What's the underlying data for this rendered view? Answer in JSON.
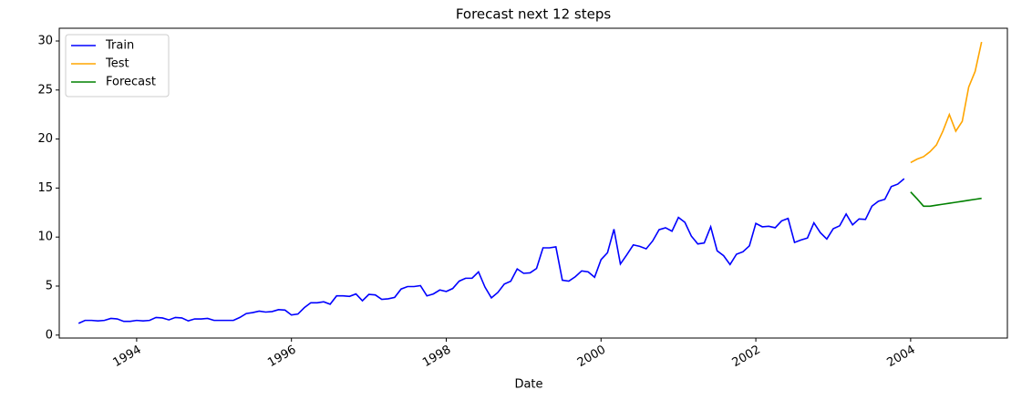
{
  "chart_data": {
    "type": "line",
    "title": "Forecast next 12 steps",
    "x_label": "Date",
    "xlim": [
      "1993-01",
      "2005-04"
    ],
    "xticks": [
      "1994",
      "1996",
      "1998",
      "2000",
      "2002",
      "2004"
    ],
    "ylim": [
      -0.3,
      31.3
    ],
    "yticks": [
      0,
      5,
      10,
      15,
      20,
      25,
      30
    ],
    "legend": "upper left",
    "grid": false,
    "series": [
      {
        "name": "Train",
        "color": "#0000ff",
        "x": [
          "1993-04",
          "1993-05",
          "1993-06",
          "1993-07",
          "1993-08",
          "1993-09",
          "1993-10",
          "1993-11",
          "1993-12",
          "1994-01",
          "1994-02",
          "1994-03",
          "1994-04",
          "1994-05",
          "1994-06",
          "1994-07",
          "1994-08",
          "1994-09",
          "1994-10",
          "1994-11",
          "1994-12",
          "1995-01",
          "1995-02",
          "1995-03",
          "1995-04",
          "1995-05",
          "1995-06",
          "1995-07",
          "1995-08",
          "1995-09",
          "1995-10",
          "1995-11",
          "1995-12",
          "1996-01",
          "1996-02",
          "1996-03",
          "1996-04",
          "1996-05",
          "1996-06",
          "1996-07",
          "1996-08",
          "1996-09",
          "1996-10",
          "1996-11",
          "1996-12",
          "1997-01",
          "1997-02",
          "1997-03",
          "1997-04",
          "1997-05",
          "1997-06",
          "1997-07",
          "1997-08",
          "1997-09",
          "1997-10",
          "1997-11",
          "1997-12",
          "1998-01",
          "1998-02",
          "1998-03",
          "1998-04",
          "1998-05",
          "1998-06",
          "1998-07",
          "1998-08",
          "1998-09",
          "1998-10",
          "1998-11",
          "1998-12",
          "1999-01",
          "1999-02",
          "1999-03",
          "1999-04",
          "1999-05",
          "1999-06",
          "1999-07",
          "1999-08",
          "1999-09",
          "1999-10",
          "1999-11",
          "1999-12",
          "2000-01",
          "2000-02",
          "2000-03",
          "2000-04",
          "2000-05",
          "2000-06",
          "2000-07",
          "2000-08",
          "2000-09",
          "2000-10",
          "2000-11",
          "2000-12",
          "2001-01",
          "2001-02",
          "2001-03",
          "2001-04",
          "2001-05",
          "2001-06",
          "2001-07",
          "2001-08",
          "2001-09",
          "2001-10",
          "2001-11",
          "2001-12",
          "2002-01",
          "2002-02",
          "2002-03",
          "2002-04",
          "2002-05",
          "2002-06",
          "2002-07",
          "2002-08",
          "2002-09",
          "2002-10",
          "2002-11",
          "2002-12",
          "2003-01",
          "2003-02",
          "2003-03",
          "2003-04",
          "2003-05",
          "2003-06",
          "2003-07",
          "2003-08",
          "2003-09",
          "2003-10",
          "2003-11",
          "2003-12"
        ],
        "values": [
          1.2,
          1.5,
          1.5,
          1.45,
          1.5,
          1.7,
          1.65,
          1.4,
          1.4,
          1.5,
          1.45,
          1.5,
          1.8,
          1.75,
          1.55,
          1.8,
          1.75,
          1.45,
          1.65,
          1.65,
          1.7,
          1.5,
          1.5,
          1.5,
          1.5,
          1.8,
          2.2,
          2.3,
          2.45,
          2.35,
          2.4,
          2.6,
          2.55,
          2.05,
          2.15,
          2.8,
          3.3,
          3.3,
          3.4,
          3.15,
          4.0,
          4.0,
          3.95,
          4.2,
          3.5,
          4.15,
          4.1,
          3.65,
          3.7,
          3.85,
          4.7,
          4.95,
          4.95,
          5.05,
          4.0,
          4.2,
          4.6,
          4.45,
          4.75,
          5.5,
          5.8,
          5.8,
          6.45,
          4.9,
          3.8,
          4.35,
          5.2,
          5.5,
          6.75,
          6.3,
          6.35,
          6.8,
          8.9,
          8.9,
          9.0,
          5.6,
          5.5,
          5.95,
          6.55,
          6.45,
          5.9,
          7.7,
          8.4,
          10.8,
          7.25,
          8.2,
          9.2,
          9.05,
          8.8,
          9.6,
          10.75,
          10.95,
          10.6,
          12.0,
          11.5,
          10.1,
          9.3,
          9.4,
          11.05,
          8.6,
          8.1,
          7.2,
          8.25,
          8.5,
          9.1,
          11.4,
          11.05,
          11.1,
          10.95,
          11.65,
          11.9,
          9.45,
          9.7,
          9.9,
          11.45,
          10.45,
          9.8,
          10.85,
          11.15,
          12.35,
          11.25,
          11.85,
          11.8,
          13.15,
          13.65,
          13.85,
          15.15,
          15.4,
          15.95
        ]
      },
      {
        "name": "Test",
        "color": "#ffa500",
        "x": [
          "2004-01",
          "2004-02",
          "2004-03",
          "2004-04",
          "2004-05",
          "2004-06",
          "2004-07",
          "2004-08",
          "2004-09",
          "2004-10",
          "2004-11",
          "2004-12"
        ],
        "values": [
          17.6,
          17.95,
          18.2,
          18.7,
          19.4,
          20.8,
          22.5,
          20.8,
          21.8,
          25.3,
          26.9,
          29.9
        ]
      },
      {
        "name": "Forecast",
        "color": "#008000",
        "x": [
          "2004-01",
          "2004-02",
          "2004-03",
          "2004-04",
          "2004-05",
          "2004-06",
          "2004-07",
          "2004-08",
          "2004-09",
          "2004-10",
          "2004-11",
          "2004-12"
        ],
        "values": [
          14.6,
          13.9,
          13.15,
          13.15,
          13.25,
          13.35,
          13.45,
          13.55,
          13.65,
          13.75,
          13.85,
          13.95
        ]
      }
    ]
  }
}
